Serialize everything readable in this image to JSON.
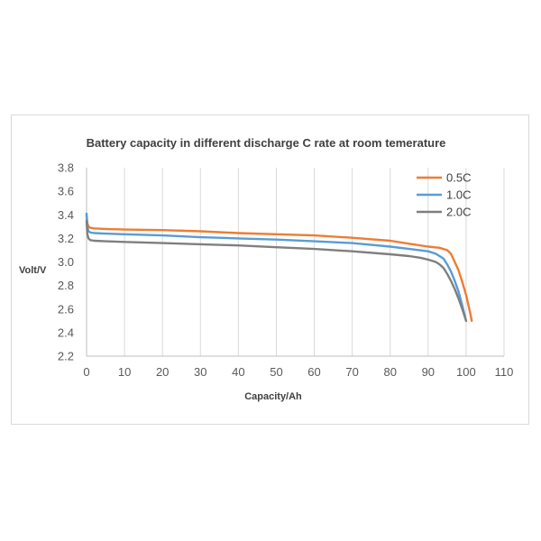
{
  "chart_data": {
    "type": "line",
    "title": "Battery capacity in different discharge C rate at room temerature",
    "xlabel": "Capacity/Ah",
    "ylabel": "Volt/V",
    "xlim": [
      0,
      110
    ],
    "ylim": [
      2.2,
      3.8
    ],
    "xticks": [
      "0",
      "10",
      "20",
      "30",
      "40",
      "50",
      "60",
      "70",
      "80",
      "90",
      "100",
      "110"
    ],
    "yticks": [
      "2.2",
      "2.4",
      "2.6",
      "2.8",
      "3.0",
      "3.2",
      "3.4",
      "3.6",
      "3.8"
    ],
    "grid": "vertical",
    "legend_position": "top-right",
    "series": [
      {
        "name": "0.5C",
        "color": "#ed7d31",
        "x": [
          0,
          0.2,
          0.5,
          1,
          2,
          5,
          10,
          20,
          30,
          40,
          50,
          60,
          70,
          80,
          85,
          90,
          93,
          95,
          96,
          97,
          98,
          99,
          100,
          101,
          101.5
        ],
        "y": [
          3.4,
          3.33,
          3.3,
          3.29,
          3.285,
          3.28,
          3.275,
          3.27,
          3.26,
          3.245,
          3.235,
          3.225,
          3.205,
          3.18,
          3.155,
          3.13,
          3.12,
          3.1,
          3.07,
          3.0,
          2.93,
          2.83,
          2.72,
          2.58,
          2.5
        ]
      },
      {
        "name": "1.0C",
        "color": "#5b9bd5",
        "x": [
          0,
          0.2,
          0.5,
          1,
          2,
          5,
          10,
          20,
          30,
          40,
          50,
          60,
          70,
          80,
          85,
          90,
          92,
          94,
          95,
          96,
          97,
          98,
          99,
          100
        ],
        "y": [
          3.41,
          3.3,
          3.26,
          3.25,
          3.245,
          3.24,
          3.235,
          3.225,
          3.21,
          3.2,
          3.19,
          3.175,
          3.16,
          3.13,
          3.11,
          3.09,
          3.07,
          3.03,
          2.98,
          2.92,
          2.84,
          2.75,
          2.63,
          2.5
        ]
      },
      {
        "name": "2.0C",
        "color": "#7f7f7f",
        "x": [
          0,
          0.2,
          0.5,
          1,
          2,
          5,
          10,
          20,
          30,
          40,
          50,
          60,
          70,
          80,
          85,
          88,
          90,
          92,
          93,
          94,
          95,
          96,
          97,
          98,
          99,
          100
        ],
        "y": [
          3.35,
          3.24,
          3.2,
          3.185,
          3.18,
          3.175,
          3.17,
          3.16,
          3.15,
          3.14,
          3.125,
          3.11,
          3.09,
          3.065,
          3.05,
          3.035,
          3.02,
          3.0,
          2.98,
          2.95,
          2.9,
          2.84,
          2.77,
          2.69,
          2.6,
          2.5
        ]
      }
    ]
  }
}
